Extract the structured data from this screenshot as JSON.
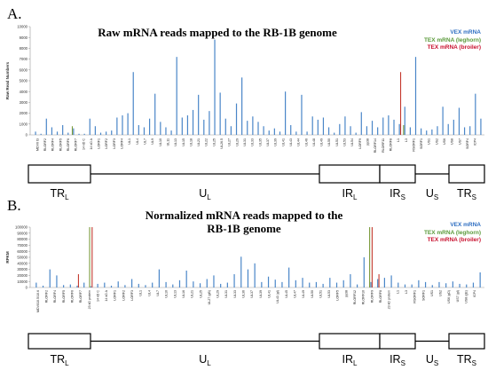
{
  "figure": {
    "panels": [
      {
        "letter": "A.",
        "title_lines": [
          "Raw mRNA reads mapped to the RB-1B genome"
        ],
        "ylabel": "Raw Read Numbers",
        "legend": [
          "VEX mRNA",
          "TEX mRNA (leghorn)",
          "TEX mRNA (broiler)"
        ],
        "yticks": [
          "10000",
          "9000",
          "8000",
          "7000",
          "6000",
          "5000",
          "4000",
          "3000",
          "2000",
          "1000",
          "0"
        ],
        "gene_labels": [
          "MDV0 t3",
          "RLORF2",
          "RLORF4",
          "RLORF5",
          "RLORF6",
          "RLORF7",
          "14 kD C",
          "14 kD A",
          "LORF1",
          "LORF2",
          "LORF3",
          "LORF4",
          "UL1",
          "UL4",
          "UL7",
          "UL9",
          "UL10",
          "UL11",
          "UL13",
          "UL15",
          "UL18",
          "UL21",
          "UL22",
          "UL25",
          "UL26.5",
          "UL27",
          "UL29",
          "UL31",
          "UL33",
          "UL35",
          "UL37",
          "UL39",
          "UL41",
          "UL43",
          "UL44",
          "UL46",
          "UL48",
          "UL49",
          "UL50",
          "UL51",
          "UL53",
          "UL54",
          "LORF9",
          "pp38",
          "RLORF14",
          "RLORF11",
          "RLORF8",
          "L1",
          "L3",
          "RSORF1",
          "SORF1",
          "US1",
          "US2",
          "US6",
          "US8",
          "US7",
          "SORF4",
          "ICP4"
        ]
      },
      {
        "letter": "B.",
        "title_lines": [
          "Normalized mRNA reads mapped to the",
          "RB-1B genome"
        ],
        "ylabel": "RPKM",
        "legend": [
          "VEX mRNA",
          "TEX mRNA (leghorn)",
          "TEX mRNA (broiler)"
        ],
        "yticks": [
          "100000",
          "90000",
          "80000",
          "70000",
          "60000",
          "50000",
          "40000",
          "30000",
          "20000",
          "10000",
          "0"
        ],
        "gene_labels": [
          "MDV010.5/10.6",
          "RLORF2",
          "RLORF4",
          "RLORF5",
          "RLORF6",
          "RLORF7",
          "23 kD protein",
          "14 kD C",
          "14 kD A",
          "LORF1",
          "LORF2",
          "LORF3",
          "UL1",
          "UL4",
          "UL7",
          "UL10",
          "UL13",
          "UL16",
          "UL21",
          "UL25",
          "UL27 (gB)",
          "UL29",
          "UL31",
          "UL33",
          "UL36",
          "UL37",
          "UL39",
          "UL41",
          "UL43 (gl)",
          "UL45",
          "UL47",
          "UL49",
          "UL50",
          "UL51",
          "UL53",
          "LORF5",
          "pp38",
          "RLORF12",
          "RLORF10",
          "RLORF9",
          "RLORF8",
          "23 kD protein",
          "L1",
          "L3",
          "RSORF1",
          "SORF1",
          "US1",
          "US2",
          "US6 (gD)",
          "US7 (gI)",
          "US8 (gE)",
          "ICP4"
        ]
      }
    ],
    "region_labels": [
      {
        "main": "TR",
        "sub": "L"
      },
      {
        "main": "U",
        "sub": "L"
      },
      {
        "main": "IR",
        "sub": "L"
      },
      {
        "main": "IR",
        "sub": "S"
      },
      {
        "main": "U",
        "sub": "S"
      },
      {
        "main": "TR",
        "sub": "S"
      }
    ],
    "colors": {
      "vex": "#4a86c8",
      "leghorn": "#7a9a3a",
      "broiler": "#c43a2e",
      "tex_leghorn_text": "#5a9a3a",
      "tex_broiler_text": "#c8102e",
      "vex_text": "#2f6fc2"
    }
  },
  "chart_data": [
    {
      "type": "bar",
      "title": "Raw mRNA reads mapped to the RB-1B genome",
      "xlabel": "",
      "ylabel": "Raw Read Numbers",
      "ylim": [
        0,
        10000
      ],
      "grid": false,
      "legend_position": "top-right",
      "series": [
        {
          "name": "VEX mRNA",
          "color": "#4a86c8",
          "values": [
            300,
            100,
            1500,
            700,
            300,
            900,
            200,
            600,
            100,
            100,
            1500,
            800,
            200,
            300,
            400,
            1600,
            1800,
            2000,
            5800,
            900,
            700,
            1500,
            3800,
            1200,
            700,
            400,
            7200,
            1600,
            1800,
            2300,
            3700,
            1400,
            2200,
            8800,
            3900,
            1500,
            800,
            2900,
            5300,
            1300,
            1700,
            1200,
            800,
            400,
            600,
            300,
            4000,
            900,
            300,
            3700,
            300,
            1700,
            1400,
            1600,
            700,
            200,
            1000,
            1700,
            800,
            200,
            2100,
            800,
            1300,
            700,
            1600,
            1800,
            1400,
            1000,
            2600,
            700,
            7200,
            600,
            400,
            500,
            800,
            2600,
            1000,
            1400,
            2500,
            700,
            800,
            3800,
            1500
          ]
        },
        {
          "name": "TEX mRNA (leghorn)",
          "color": "#7a9a3a",
          "values": [
            0,
            0,
            0,
            0,
            0,
            0,
            0,
            800,
            0,
            0,
            0,
            0,
            0,
            0,
            0,
            0,
            0,
            0,
            0,
            0,
            0,
            0,
            0,
            0,
            0,
            0,
            0,
            0,
            0,
            0,
            0,
            0,
            0,
            0,
            0,
            0,
            0,
            0,
            0,
            0,
            0,
            0,
            0,
            0,
            0,
            0,
            0,
            0,
            0,
            0,
            0,
            0,
            0,
            0,
            0,
            0,
            0,
            0,
            0,
            0,
            0,
            0,
            0,
            0,
            0,
            0,
            0,
            0,
            900,
            0,
            0,
            0,
            0,
            0,
            0,
            0,
            0,
            0,
            0,
            0,
            0,
            0,
            0
          ]
        },
        {
          "name": "TEX mRNA (broiler)",
          "color": "#c43a2e",
          "values": [
            0,
            0,
            0,
            0,
            0,
            0,
            0,
            0,
            0,
            0,
            0,
            0,
            0,
            0,
            0,
            0,
            0,
            0,
            0,
            0,
            0,
            0,
            0,
            0,
            0,
            0,
            0,
            0,
            0,
            0,
            0,
            0,
            0,
            0,
            0,
            0,
            0,
            0,
            0,
            0,
            0,
            0,
            0,
            0,
            0,
            0,
            0,
            0,
            0,
            0,
            0,
            0,
            0,
            0,
            0,
            0,
            0,
            0,
            0,
            0,
            0,
            0,
            0,
            0,
            0,
            0,
            0,
            5800,
            0,
            0,
            0,
            0,
            0,
            0,
            0,
            0,
            0,
            0,
            0,
            0,
            0,
            0,
            0
          ]
        }
      ],
      "yticks": [
        0,
        1000,
        2000,
        3000,
        4000,
        5000,
        6000,
        7000,
        8000,
        9000,
        10000
      ]
    },
    {
      "type": "bar",
      "title": "Normalized mRNA reads mapped to the RB-1B genome",
      "xlabel": "",
      "ylabel": "RPKM",
      "ylim": [
        0,
        100000
      ],
      "grid": false,
      "legend_position": "top-right",
      "series": [
        {
          "name": "VEX mRNA",
          "color": "#4a86c8",
          "values": [
            8000,
            3000,
            30000,
            20000,
            4000,
            5000,
            3000,
            8000,
            2000,
            6000,
            8000,
            3000,
            10000,
            4000,
            14000,
            6000,
            4000,
            8000,
            30000,
            9000,
            5000,
            12000,
            28000,
            10000,
            7000,
            14000,
            20000,
            6000,
            8000,
            22000,
            51000,
            30000,
            40000,
            9000,
            18000,
            13000,
            9000,
            33000,
            12000,
            16000,
            8000,
            9000,
            6000,
            16000,
            8000,
            12000,
            22000,
            5000,
            50000,
            9000,
            14000,
            16000,
            20000,
            8000,
            5000,
            5000,
            12000,
            9000,
            4000,
            9000,
            7000,
            10000,
            6000,
            5000,
            8000,
            25000
          ]
        },
        {
          "name": "TEX mRNA (leghorn)",
          "color": "#7a9a3a",
          "values": [
            0,
            0,
            0,
            0,
            0,
            0,
            0,
            0,
            100000,
            0,
            0,
            0,
            0,
            0,
            0,
            0,
            0,
            0,
            0,
            0,
            0,
            0,
            0,
            0,
            0,
            0,
            0,
            0,
            0,
            0,
            0,
            0,
            0,
            0,
            0,
            0,
            0,
            0,
            0,
            0,
            0,
            0,
            0,
            0,
            0,
            0,
            0,
            0,
            0,
            100000,
            0,
            0,
            0,
            0,
            0,
            0,
            0,
            0,
            0,
            0,
            0,
            0,
            0,
            0,
            0,
            0
          ]
        },
        {
          "name": "TEX mRNA (broiler)",
          "color": "#c43a2e",
          "values": [
            0,
            0,
            0,
            0,
            0,
            0,
            22000,
            0,
            100000,
            0,
            0,
            0,
            0,
            0,
            0,
            0,
            0,
            0,
            0,
            0,
            0,
            0,
            0,
            0,
            0,
            0,
            0,
            0,
            0,
            0,
            0,
            0,
            0,
            0,
            0,
            0,
            0,
            0,
            0,
            0,
            0,
            0,
            0,
            0,
            0,
            0,
            0,
            0,
            0,
            100000,
            22000,
            0,
            0,
            0,
            0,
            0,
            0,
            0,
            0,
            0,
            0,
            0,
            0,
            0,
            0,
            0
          ]
        }
      ],
      "yticks": [
        0,
        10000,
        20000,
        30000,
        40000,
        50000,
        60000,
        70000,
        80000,
        90000,
        100000
      ]
    }
  ]
}
